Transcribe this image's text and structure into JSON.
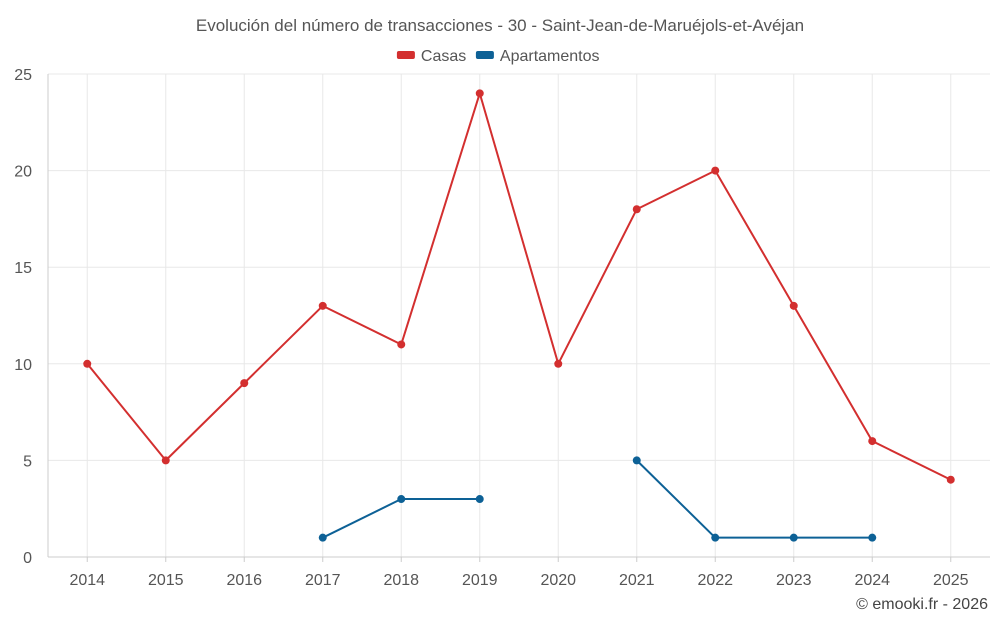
{
  "chart_data": {
    "type": "line",
    "title": "Evolución del número de transacciones - 30 - Saint-Jean-de-Maruéjols-et-Avéjan",
    "categories": [
      "2014",
      "2015",
      "2016",
      "2017",
      "2018",
      "2019",
      "2020",
      "2021",
      "2022",
      "2023",
      "2024",
      "2025"
    ],
    "ylim": [
      0,
      25
    ],
    "yticks": [
      0,
      5,
      10,
      15,
      20,
      25
    ],
    "grid": true,
    "legend_position": "top-center",
    "series": [
      {
        "name": "Casas",
        "color": "#d32f2f",
        "values": [
          10,
          5,
          9,
          13,
          11,
          24,
          10,
          18,
          20,
          13,
          6,
          4
        ]
      },
      {
        "name": "Apartamentos",
        "color": "#0d6196",
        "values": [
          null,
          null,
          null,
          1,
          3,
          3,
          null,
          5,
          1,
          1,
          1,
          null
        ]
      }
    ],
    "credit": "© emooki.fr - 2026"
  }
}
